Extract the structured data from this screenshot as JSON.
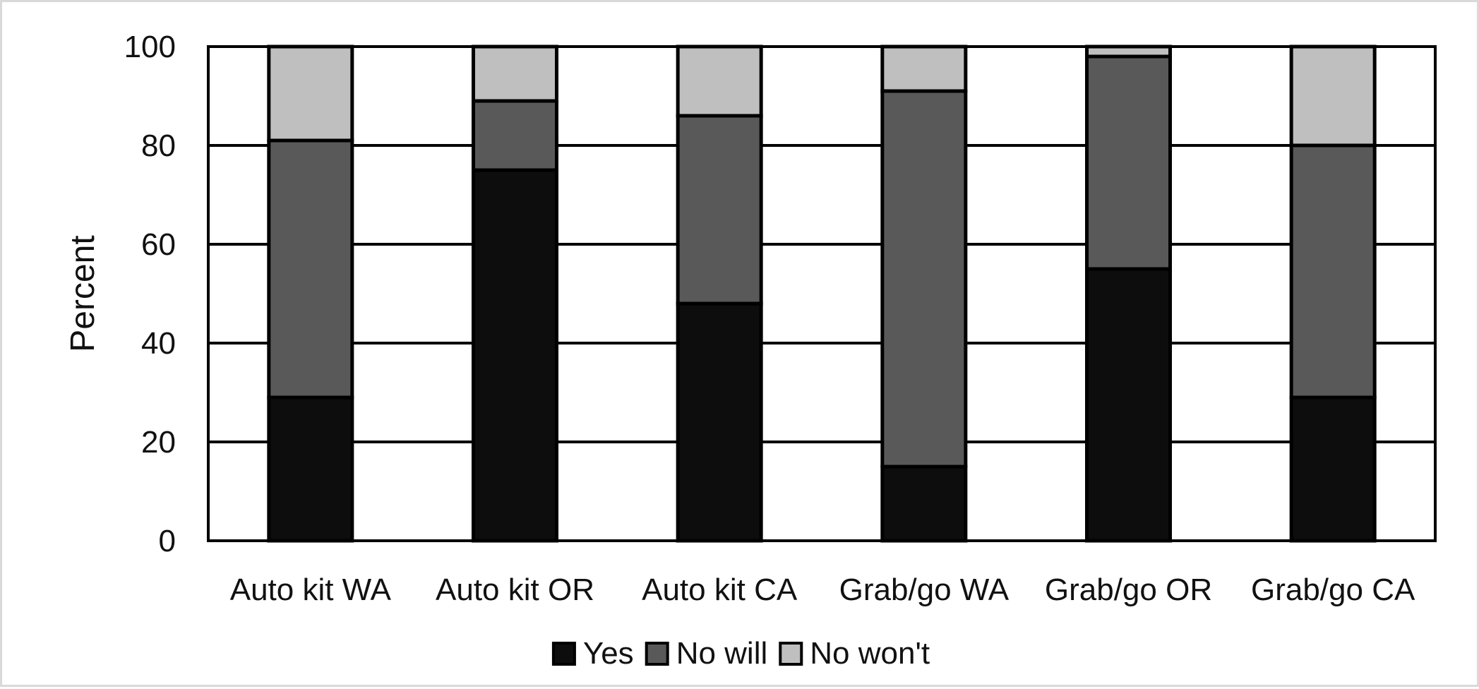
{
  "chart_data": {
    "type": "bar",
    "stacked": true,
    "categories": [
      "Auto kit WA",
      "Auto kit OR",
      "Auto kit CA",
      "Grab/go WA",
      "Grab/go OR",
      "Grab/go CA"
    ],
    "series": [
      {
        "name": "Yes",
        "values": [
          29,
          75,
          48,
          15,
          55,
          29
        ],
        "color": "#0d0d0d"
      },
      {
        "name": "No will",
        "values": [
          52,
          14,
          38,
          76,
          43,
          51
        ],
        "color": "#595959"
      },
      {
        "name": "No won't",
        "values": [
          19,
          11,
          14,
          9,
          2,
          20
        ],
        "color": "#bfbfbf"
      }
    ],
    "title": "",
    "xlabel": "",
    "ylabel": "Percent",
    "ylim": [
      0,
      100
    ],
    "yticks": [
      "0",
      "20",
      "40",
      "60",
      "80",
      "100"
    ],
    "grid": true,
    "legend": "bottom"
  }
}
